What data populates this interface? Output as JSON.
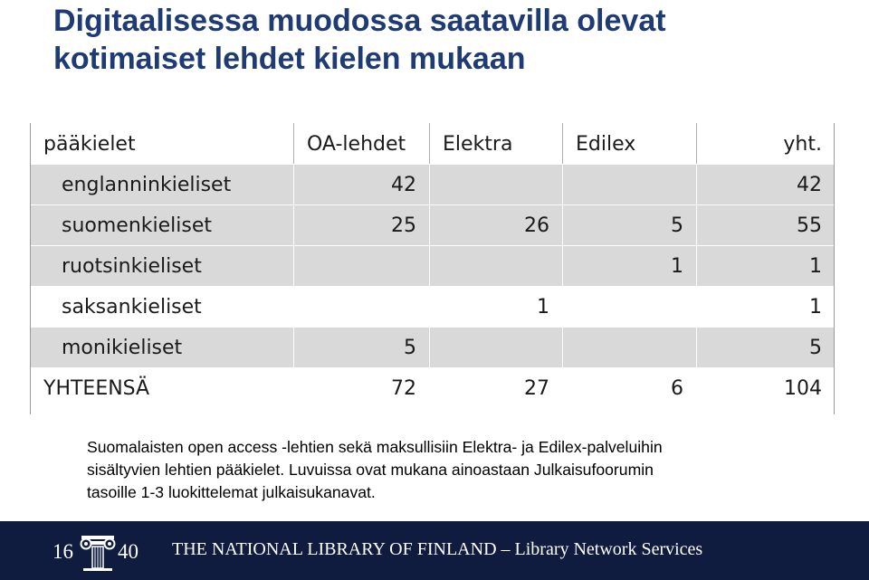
{
  "title": {
    "line1": "Digitaalisessa muodossa saatavilla olevat",
    "line2": "kotimaiset lehdet kielen mukaan"
  },
  "table": {
    "headers": [
      "pääkielet",
      "OA-lehdet",
      "Elektra",
      "Edilex",
      "yht."
    ],
    "rows": [
      {
        "label": "englanninkieliset",
        "oa": "42",
        "elektra": "",
        "edilex": "",
        "total": "42"
      },
      {
        "label": "suomenkieliset",
        "oa": "25",
        "elektra": "26",
        "edilex": "5",
        "total": "55"
      },
      {
        "label": "ruotsinkieliset",
        "oa": "",
        "elektra": "",
        "edilex": "1",
        "total": "1"
      },
      {
        "label": "saksankieliset",
        "oa": "",
        "elektra": "1",
        "edilex": "",
        "total": "1"
      },
      {
        "label": "monikieliset",
        "oa": "5",
        "elektra": "",
        "edilex": "",
        "total": "5"
      },
      {
        "label": "YHTEENSÄ",
        "oa": "72",
        "elektra": "27",
        "edilex": "6",
        "total": "104"
      }
    ]
  },
  "caption": {
    "line1": "Suomalaisten open access -lehtien sekä maksullisiin Elektra- ja Edilex-palveluihin",
    "line2": "sisältyvien lehtien pääkielet. Luvuissa ovat mukana ainoastaan Julkaisufoorumin",
    "line3": "tasoille 1-3 luokittelemat julkaisukanavat."
  },
  "footer": {
    "logo_year_left": "16",
    "logo_year_right": "40",
    "logo_icon": "ionic-capital-emblem-icon",
    "text": "THE NATIONAL LIBRARY OF FINLAND – Library Network Services"
  },
  "colors": {
    "title": "#1f3b73",
    "row_shade": "#d9d9d9",
    "footer_bg": "#0f1c40"
  }
}
